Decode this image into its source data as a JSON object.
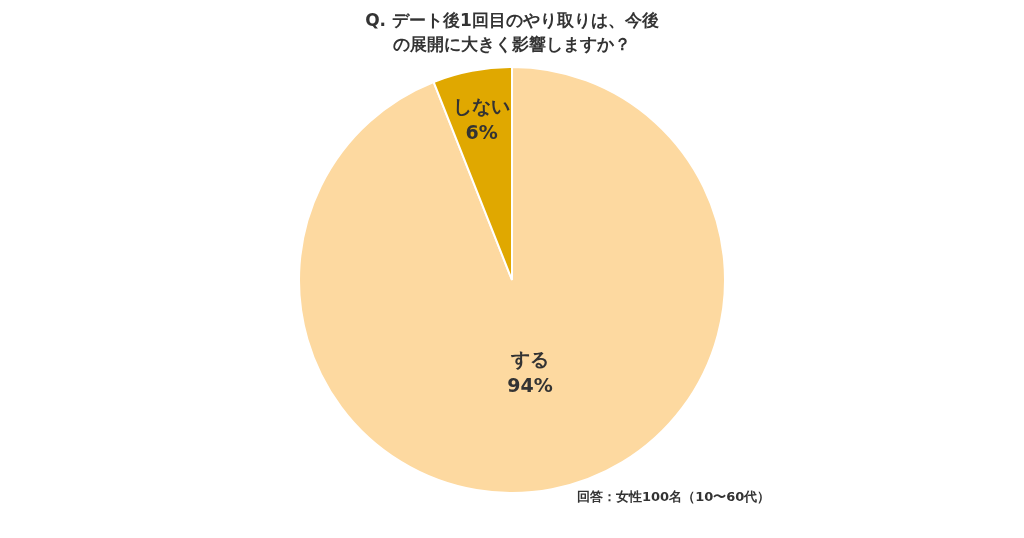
{
  "chart_data": {
    "type": "pie",
    "title": "Q. デート後1回目のやり取りは、今後の展開に大きく影響しますか？",
    "categories": [
      "する",
      "しない"
    ],
    "values": [
      94,
      6
    ],
    "colors": [
      "#fdd9a0",
      "#e0a800"
    ],
    "value_labels": [
      "94%",
      "6%"
    ],
    "legend": false,
    "annotations": [
      "回答：女性100名（10〜60代）"
    ]
  }
}
